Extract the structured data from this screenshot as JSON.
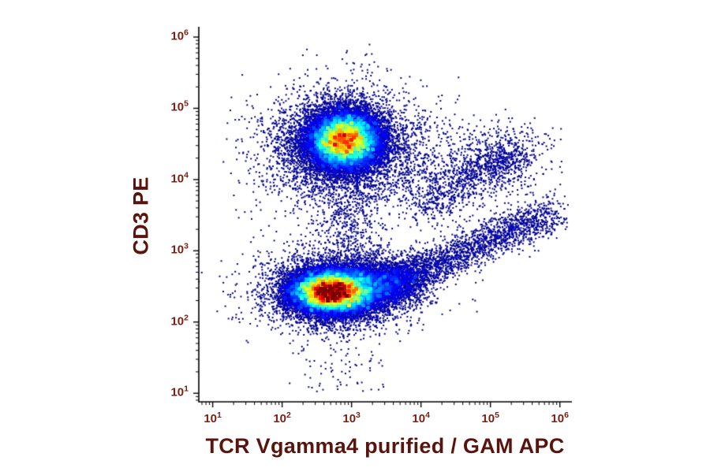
{
  "figure": {
    "background": "#ffffff"
  },
  "chart_data": {
    "type": "scatter",
    "subtype": "flow_cytometry_density_dot_plot",
    "title": "",
    "xlabel": "TCR Vgamma4 purified / GAM APC",
    "ylabel": "CD3 PE",
    "x_scale": "log",
    "y_scale": "log",
    "x_range_log10": [
      0.8,
      6.14
    ],
    "y_range_log10": [
      0.88,
      6.1
    ],
    "x_ticks_log10": [
      1,
      2,
      3,
      4,
      5,
      6
    ],
    "y_ticks_log10": [
      1,
      2,
      3,
      4,
      5,
      6
    ],
    "tick_base": "10",
    "grid": false,
    "legend": false,
    "colormap": "jet",
    "colors": {
      "axis": "#000000",
      "axis_label": "#5a140e",
      "tick_label": "#7c2014",
      "sparse_dot": "#00007f"
    },
    "populations": [
      {
        "name": "cd3-positive-core",
        "shape": "gaussian",
        "n": 15000,
        "cx": 2.9,
        "cy": 4.55,
        "sx": 0.27,
        "sy": 0.21,
        "description": "CD3+ lymphocytes: dense cluster at ~8x10^2 APC, ~3.5x10^4 PE (red/yellow/green core)"
      },
      {
        "name": "cd3-positive-halo",
        "shape": "gaussian",
        "n": 3000,
        "cx": 2.9,
        "cy": 4.52,
        "sx": 0.5,
        "sy": 0.4,
        "description": "sparse blue halo around CD3+ cluster"
      },
      {
        "name": "cd3-positive-left-scatter",
        "shape": "gaussian",
        "n": 400,
        "cx": 2.2,
        "cy": 4.35,
        "sx": 0.35,
        "sy": 0.35,
        "description": "sparse events left of CD3+ cluster (~10^2 APC)"
      },
      {
        "name": "cd3-positive-right-scatter",
        "shape": "gaussian",
        "n": 550,
        "cx": 3.85,
        "cy": 4.25,
        "sx": 0.5,
        "sy": 0.35,
        "description": "sparse events right of CD3+ cluster toward 10^4 APC"
      },
      {
        "name": "bridge-between-clusters",
        "shape": "gaussian",
        "n": 650,
        "cx": 2.95,
        "cy": 3.45,
        "sx": 0.28,
        "sy": 0.5,
        "description": "sparse vertical bridge between the two main clusters"
      },
      {
        "name": "cd3-negative-core",
        "shape": "gaussian",
        "n": 16000,
        "cx": 2.7,
        "cy": 2.42,
        "sx": 0.3,
        "sy": 0.16,
        "description": "CD3- cells: dense flat cluster at ~5x10^2 APC, ~2.6x10^2 PE"
      },
      {
        "name": "cd3-negative-halo",
        "shape": "gaussian",
        "n": 2600,
        "cx": 2.75,
        "cy": 2.45,
        "sx": 0.55,
        "sy": 0.28,
        "description": "sparse blue halo around CD3- cluster"
      },
      {
        "name": "cd3-negative-right-shoulder",
        "shape": "gaussian",
        "n": 3800,
        "cx": 3.3,
        "cy": 2.52,
        "sx": 0.35,
        "sy": 0.18,
        "description": "cyan/green shoulder extending right of CD3- cluster"
      },
      {
        "name": "lower-diagonal-tail",
        "shape": "diagonal",
        "n": 2400,
        "x0": 3.55,
        "y0": 2.55,
        "x1": 5.95,
        "y1": 3.55,
        "spread": 0.14,
        "bias": 1.4,
        "description": "diagonal tail rising from CD3- cluster toward high APC (~10^6, ~3x10^3 PE)"
      },
      {
        "name": "upper-diagonal-streak",
        "shape": "diagonal",
        "n": 800,
        "x0": 4.0,
        "y0": 3.65,
        "x1": 5.5,
        "y1": 4.45,
        "spread": 0.16,
        "bias": 1.0,
        "description": "sparse diagonal streak between clusters toward upper right"
      },
      {
        "name": "right-upper-sparse-cluster",
        "shape": "gaussian",
        "n": 450,
        "cx": 5.05,
        "cy": 4.25,
        "sx": 0.3,
        "sy": 0.28,
        "description": "sparse blue cluster near 10^5 APC, ~2x10^4 PE"
      },
      {
        "name": "right-background-scatter",
        "shape": "uniform",
        "n": 90,
        "x0": 4.2,
        "x1": 6.05,
        "y0": 3.2,
        "y1": 4.9,
        "description": "scattered events upper-right region"
      },
      {
        "name": "background-scatter",
        "shape": "uniform",
        "n": 220,
        "x0": 1.2,
        "x1": 4.3,
        "y0": 2.0,
        "y1": 5.2,
        "description": "sparse background events over plot"
      },
      {
        "name": "bottom-sparse-scatter",
        "shape": "uniform",
        "n": 110,
        "x0": 2.1,
        "x1": 3.5,
        "y0": 1.0,
        "y1": 2.1,
        "description": "rare events below CD3- cluster down to ~10^1 PE"
      }
    ]
  }
}
